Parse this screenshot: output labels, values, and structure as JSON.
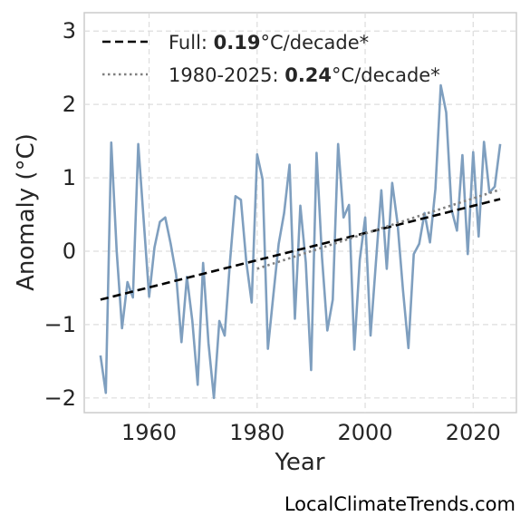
{
  "chart_data": {
    "type": "line",
    "xlabel": "Year",
    "ylabel": "Anomaly (°C)",
    "xlim": [
      1948,
      2028
    ],
    "ylim": [
      -2.2,
      3.25
    ],
    "xticks": [
      1960,
      1980,
      2000,
      2020
    ],
    "yticks": [
      -2,
      -1,
      0,
      1,
      2,
      3
    ],
    "ytick_labels": [
      "−2",
      "−1",
      "0",
      "1",
      "2",
      "3"
    ],
    "grid": true,
    "legend_position": "top-left",
    "series": [
      {
        "color": "#7f9fbf",
        "x": [
          1951,
          1952,
          1953,
          1954,
          1955,
          1956,
          1957,
          1958,
          1959,
          1960,
          1961,
          1962,
          1963,
          1964,
          1965,
          1966,
          1967,
          1968,
          1969,
          1970,
          1971,
          1972,
          1973,
          1974,
          1975,
          1976,
          1977,
          1978,
          1979,
          1980,
          1981,
          1982,
          1983,
          1984,
          1985,
          1986,
          1987,
          1988,
          1989,
          1990,
          1991,
          1992,
          1993,
          1994,
          1995,
          1996,
          1997,
          1998,
          1999,
          2000,
          2001,
          2002,
          2003,
          2004,
          2005,
          2006,
          2007,
          2008,
          2009,
          2010,
          2011,
          2012,
          2013,
          2014,
          2015,
          2016,
          2017,
          2018,
          2019,
          2020,
          2021,
          2022,
          2023,
          2024,
          2025
        ],
        "y": [
          -1.42,
          -1.93,
          1.48,
          0.0,
          -1.05,
          -0.42,
          -0.63,
          1.46,
          0.42,
          -0.62,
          0.05,
          0.4,
          0.46,
          0.1,
          -0.32,
          -1.24,
          -0.35,
          -0.95,
          -1.82,
          -0.16,
          -1.25,
          -2.0,
          -0.95,
          -1.15,
          -0.12,
          0.75,
          0.7,
          -0.15,
          -0.7,
          1.32,
          0.98,
          -1.33,
          -0.6,
          0.1,
          0.52,
          1.18,
          -0.92,
          0.62,
          -0.15,
          -1.62,
          1.34,
          -0.08,
          -1.08,
          -0.66,
          1.46,
          0.46,
          0.63,
          -1.34,
          -0.12,
          0.46,
          -1.15,
          -0.14,
          0.83,
          -0.24,
          0.93,
          0.38,
          -0.53,
          -1.32,
          -0.04,
          0.1,
          0.52,
          0.12,
          0.85,
          2.26,
          1.89,
          0.57,
          0.28,
          1.31,
          -0.04,
          1.35,
          0.2,
          1.49,
          0.8,
          0.88,
          1.46
        ]
      },
      {
        "name": "Full:",
        "label_value": "0.19",
        "label_unit": "°C/decade*",
        "color": "#000000",
        "style": "dashed",
        "x": [
          1951,
          2025
        ],
        "y": [
          -0.66,
          0.71
        ]
      },
      {
        "name": "1980-2025:",
        "label_value": "0.24",
        "label_unit": "°C/decade*",
        "color": "#808080",
        "style": "dotted",
        "x": [
          1980,
          2025
        ],
        "y": [
          -0.24,
          0.84
        ]
      }
    ]
  },
  "watermark": "LocalClimateTrends.com"
}
